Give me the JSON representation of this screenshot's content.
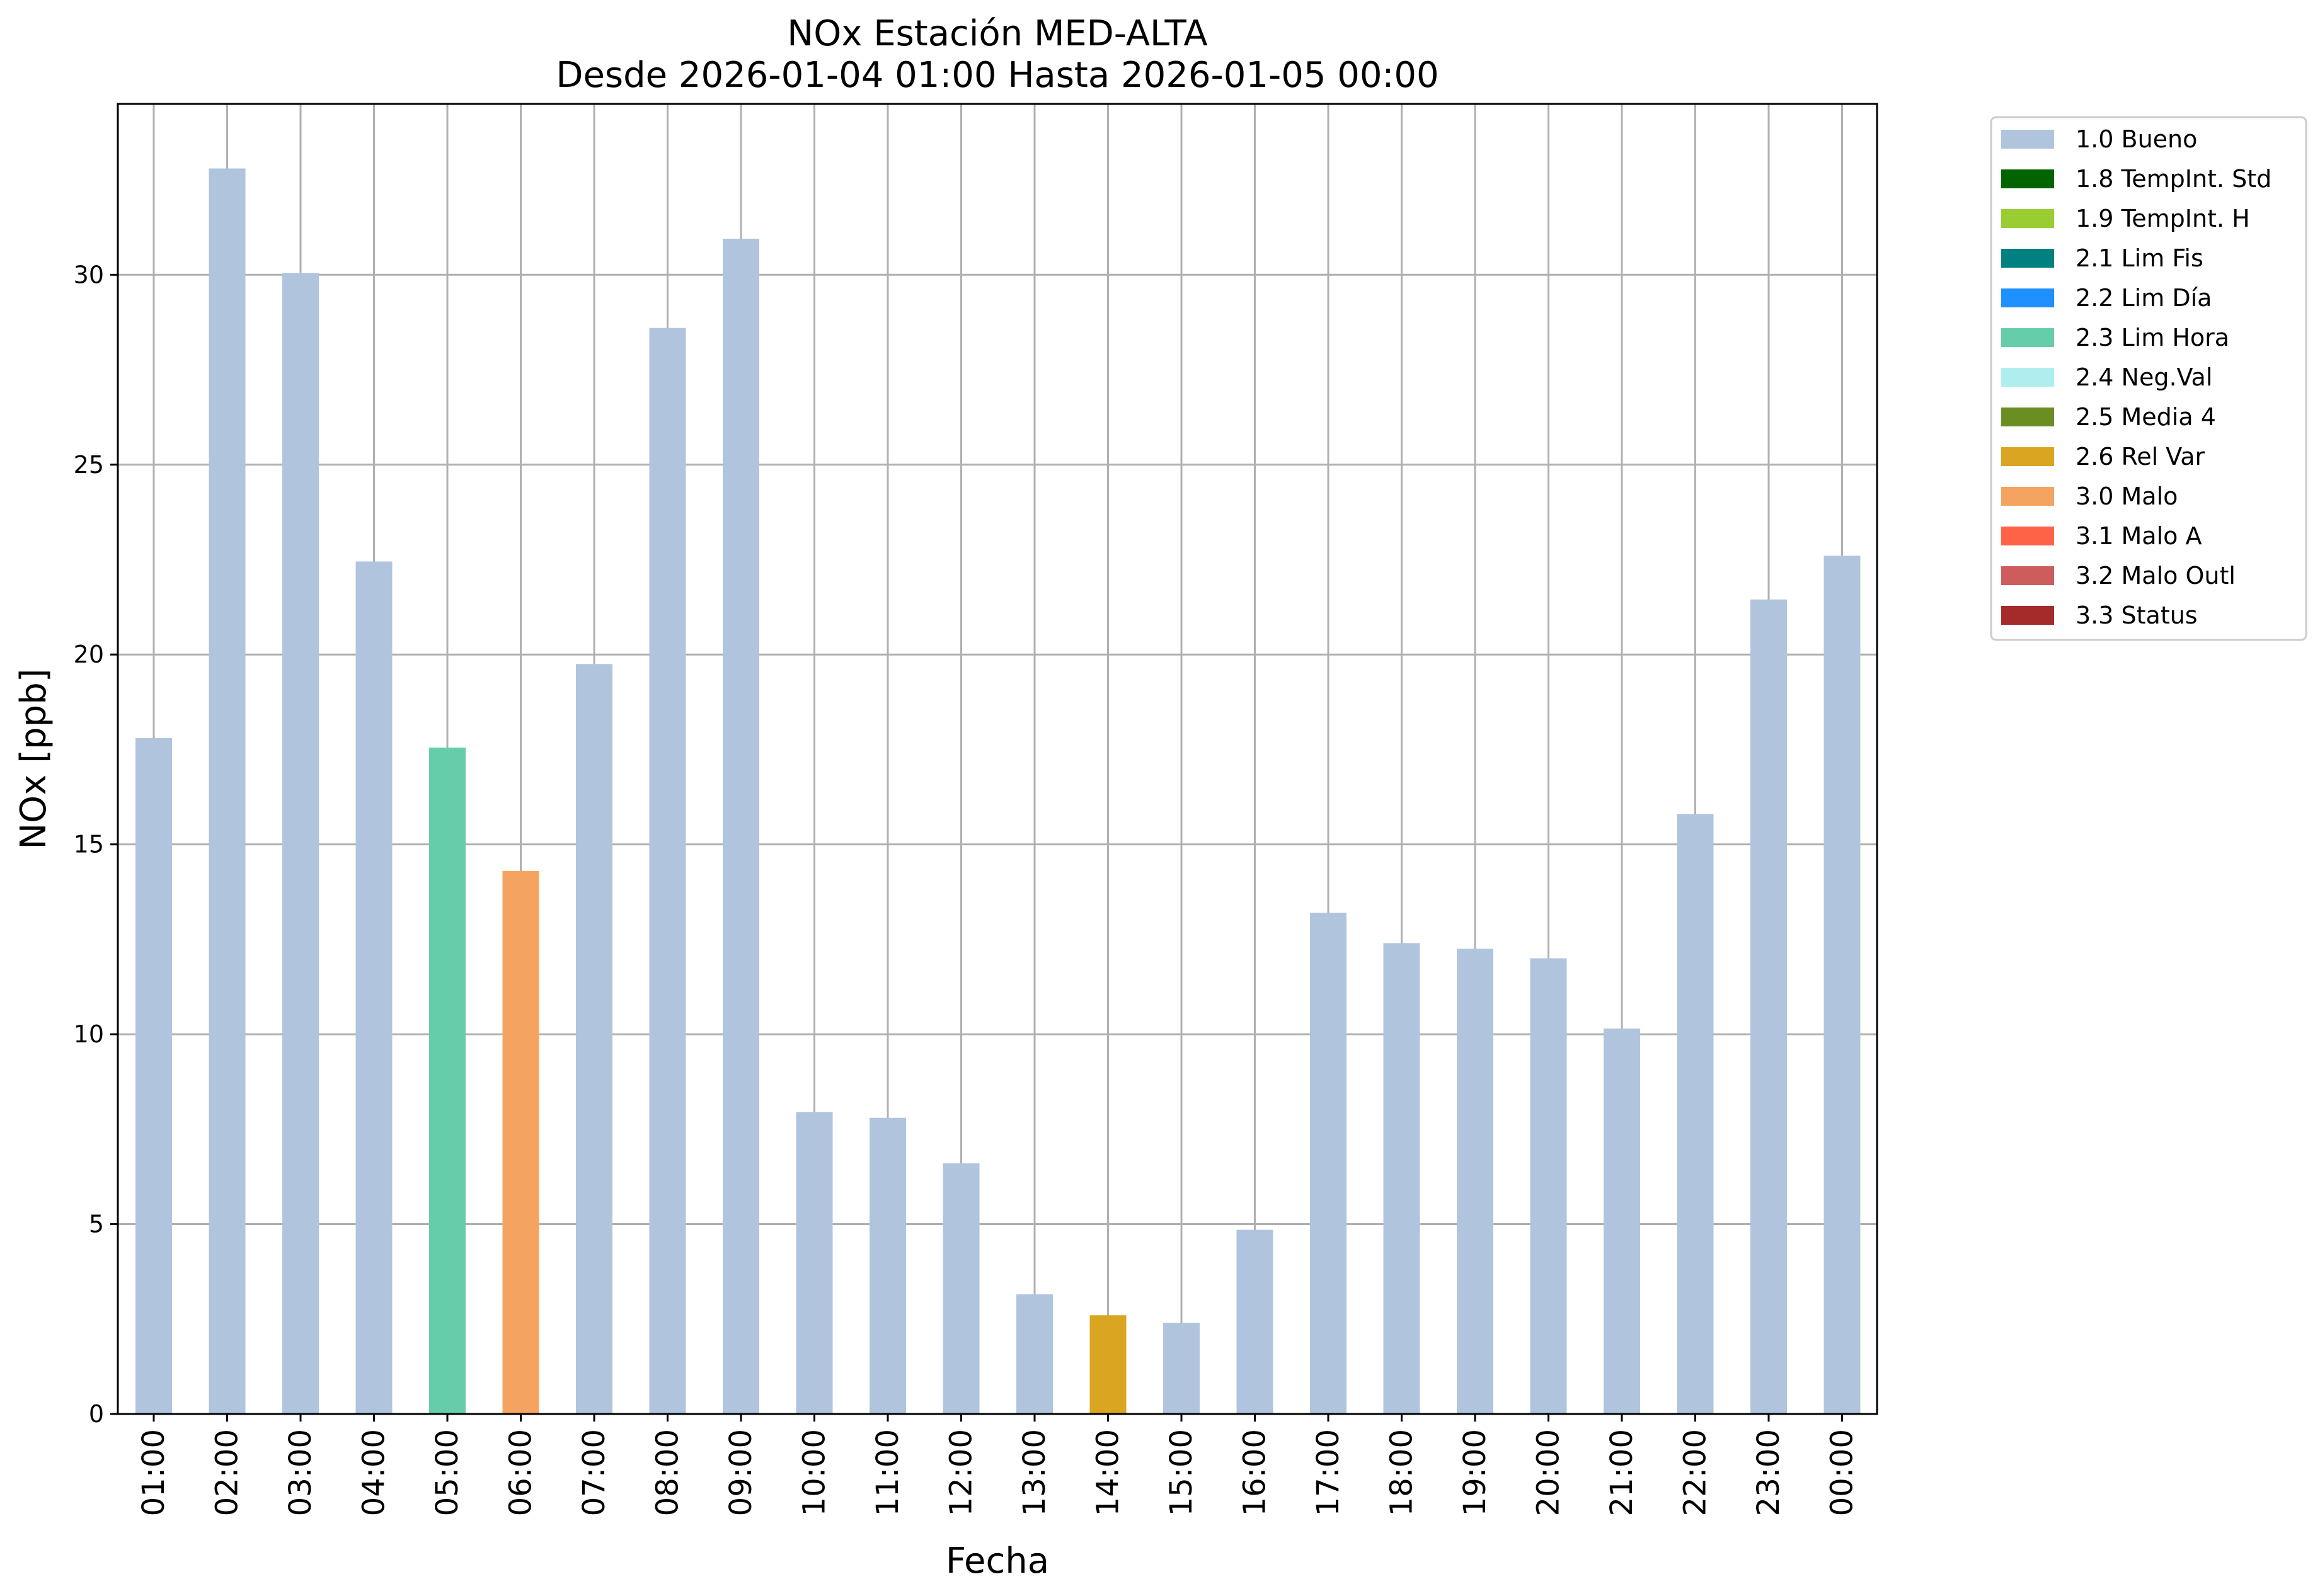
{
  "chart_data": {
    "type": "bar",
    "title": "NOx Estación MED-ALTA",
    "subtitle": "Desde 2026-01-04 01:00 Hasta 2026-01-05 00:00",
    "xlabel": "Fecha",
    "ylabel": "NOx [ppb]",
    "ylim": [
      0,
      34.5
    ],
    "yticks": [
      0,
      5,
      10,
      15,
      20,
      25,
      30
    ],
    "grid": true,
    "legend_position": "outside-right",
    "categories": [
      "01:00",
      "02:00",
      "03:00",
      "04:00",
      "05:00",
      "06:00",
      "07:00",
      "08:00",
      "09:00",
      "10:00",
      "11:00",
      "12:00",
      "13:00",
      "14:00",
      "15:00",
      "16:00",
      "17:00",
      "18:00",
      "19:00",
      "20:00",
      "21:00",
      "22:00",
      "23:00",
      "00:00"
    ],
    "values": [
      17.8,
      32.8,
      30.05,
      22.45,
      17.55,
      14.3,
      19.75,
      28.6,
      30.95,
      7.95,
      7.8,
      6.6,
      3.15,
      2.6,
      2.4,
      4.85,
      13.2,
      12.4,
      12.25,
      12.0,
      10.15,
      15.8,
      21.45,
      22.6
    ],
    "flags": [
      "1.0 Bueno",
      "1.0 Bueno",
      "1.0 Bueno",
      "1.0 Bueno",
      "2.3 Lim Hora",
      "3.0 Malo",
      "1.0 Bueno",
      "1.0 Bueno",
      "1.0 Bueno",
      "1.0 Bueno",
      "1.0 Bueno",
      "1.0 Bueno",
      "1.0 Bueno",
      "2.6 Rel Var",
      "1.0 Bueno",
      "1.0 Bueno",
      "1.0 Bueno",
      "1.0 Bueno",
      "1.0 Bueno",
      "1.0 Bueno",
      "1.0 Bueno",
      "1.0 Bueno",
      "1.0 Bueno",
      "1.0 Bueno"
    ],
    "legend": [
      {
        "label": "1.0 Bueno",
        "color": "#b0c4de"
      },
      {
        "label": "1.8 TempInt. Std",
        "color": "#006400"
      },
      {
        "label": "1.9 TempInt. H",
        "color": "#9acd32"
      },
      {
        "label": "2.1 Lim Fis",
        "color": "#008080"
      },
      {
        "label": "2.2 Lim Día",
        "color": "#1e90ff"
      },
      {
        "label": "2.3 Lim Hora",
        "color": "#66cdaa"
      },
      {
        "label": "2.4 Neg.Val",
        "color": "#afeeee"
      },
      {
        "label": "2.5 Media 4",
        "color": "#6b8e23"
      },
      {
        "label": "2.6 Rel Var",
        "color": "#daa520"
      },
      {
        "label": "3.0 Malo",
        "color": "#f4a460"
      },
      {
        "label": "3.1 Malo A",
        "color": "#ff6347"
      },
      {
        "label": "3.2 Malo Outl",
        "color": "#cd5c5c"
      },
      {
        "label": "3.3 Status",
        "color": "#a52a2a"
      }
    ]
  }
}
